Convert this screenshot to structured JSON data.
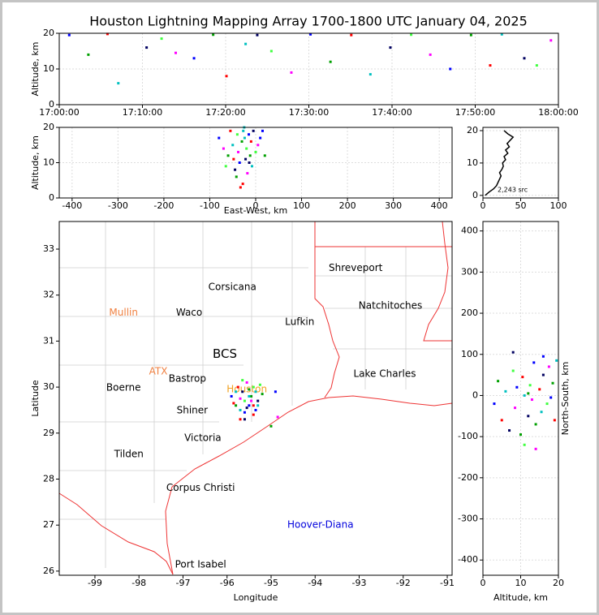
{
  "title": "Houston Lightning Mapping Array 1700-1800 UTC January 04, 2025",
  "chart_data": [
    {
      "type": "scatter",
      "ylabel": "Altitude, km",
      "xlim": [
        0,
        60
      ],
      "ylim": [
        0,
        20
      ],
      "xticks": [
        {
          "value": 0,
          "label": "17:00:00"
        },
        {
          "value": 10,
          "label": "17:10:00"
        },
        {
          "value": 20,
          "label": "17:20:00"
        },
        {
          "value": 30,
          "label": "17:30:00"
        },
        {
          "value": 40,
          "label": "17:40:00"
        },
        {
          "value": 50,
          "label": "17:50:00"
        },
        {
          "value": 60,
          "label": "18:00:00"
        }
      ],
      "yticks": [
        0,
        10,
        20
      ],
      "grid": true,
      "palette": [
        "#0000ff",
        "#00a000",
        "#ff0000",
        "#00c0c0",
        "#000060",
        "#40ff40",
        "#ff00ff"
      ],
      "x": [
        1.2,
        3.5,
        5.8,
        7.1,
        10.5,
        12.3,
        14.0,
        16.2,
        18.5,
        20.1,
        22.4,
        23.8,
        25.5,
        27.9,
        30.2,
        32.6,
        35.1,
        37.4,
        39.8,
        42.3,
        44.6,
        47.0,
        49.5,
        51.8,
        53.2,
        55.9,
        57.4,
        59.1
      ],
      "y": [
        19.5,
        14,
        19.8,
        6,
        16,
        18.5,
        14.5,
        13,
        19.6,
        8,
        17,
        19.5,
        15,
        9,
        19.7,
        12,
        19.5,
        8.5,
        16,
        19.6,
        14,
        10,
        19.5,
        11,
        19.7,
        13,
        11,
        18
      ]
    },
    {
      "type": "scatter",
      "xlabel": "East-West, km",
      "ylabel": "Altitude, km",
      "xlim": [
        -428,
        428
      ],
      "ylim": [
        0,
        20
      ],
      "xticks": [
        -400,
        -300,
        -200,
        -100,
        0,
        100,
        200,
        300,
        400
      ],
      "yticks": [
        0,
        10,
        20
      ],
      "grid": true,
      "palette": [
        "#0000ff",
        "#00a000",
        "#ff0000",
        "#00c0c0",
        "#000060",
        "#40ff40",
        "#ff00ff"
      ],
      "x": [
        -80,
        -60,
        -55,
        -50,
        -45,
        -40,
        -38,
        -35,
        -30,
        -28,
        -25,
        -22,
        -20,
        -18,
        -15,
        -12,
        -10,
        -8,
        -5,
        0,
        5,
        10,
        -42,
        -33,
        -27,
        -14,
        -65,
        -70,
        15,
        20,
        -48,
        -24
      ],
      "y": [
        17,
        12,
        19,
        15,
        8,
        18,
        13,
        10,
        16,
        4,
        20,
        11,
        14,
        7,
        18,
        12,
        16,
        9,
        19,
        13,
        15,
        17,
        6,
        3,
        19,
        10,
        9,
        14,
        19,
        12,
        11,
        17
      ]
    },
    {
      "type": "line",
      "note": "2,243 src",
      "color": "#000000",
      "xlim": [
        0,
        100
      ],
      "ylim": [
        -0.8,
        21
      ],
      "xticks": [
        0,
        50,
        100
      ],
      "yticks": [
        0,
        10,
        20
      ],
      "grid": true,
      "x": [
        3,
        8,
        14,
        18,
        20,
        22,
        24,
        22,
        25,
        27,
        26,
        30,
        28,
        33,
        30,
        35,
        32,
        36,
        40,
        33,
        28
      ],
      "y": [
        0,
        1,
        2,
        3,
        4,
        5,
        6,
        7,
        8,
        9,
        10,
        11,
        12,
        13,
        14,
        15,
        16,
        17,
        18,
        19,
        20
      ]
    },
    {
      "type": "map",
      "xlabel": "Longitude",
      "ylabel": "Latitude",
      "xlim": [
        -99.81,
        -90.89
      ],
      "ylim": [
        25.91,
        33.6
      ],
      "xticks": [
        -99,
        -98,
        -97,
        -96,
        -95,
        -94,
        -93,
        -92,
        -91
      ],
      "yticks": [
        26,
        27,
        28,
        29,
        30,
        31,
        32,
        33
      ],
      "grid": false,
      "palette": [
        "#0000ff",
        "#00a000",
        "#ff0000",
        "#00c0c0",
        "#000060",
        "#40ff40",
        "#ff00ff"
      ],
      "annotations": [
        {
          "text": "Shreveport",
          "lon": -93.08,
          "lat": 32.59,
          "color": "#000000"
        },
        {
          "text": "Corsicana",
          "lon": -95.88,
          "lat": 32.17,
          "color": "#000000"
        },
        {
          "text": "Mullin",
          "lon": -98.35,
          "lat": 31.62,
          "color": "#f08040"
        },
        {
          "text": "Waco",
          "lon": -96.86,
          "lat": 31.62,
          "color": "#000000"
        },
        {
          "text": "Natchitoches",
          "lon": -92.29,
          "lat": 31.77,
          "color": "#000000"
        },
        {
          "text": "Lufkin",
          "lon": -94.35,
          "lat": 31.41,
          "color": "#000000"
        },
        {
          "text": "BCS",
          "lon": -96.05,
          "lat": 30.72,
          "color": "#000000"
        },
        {
          "text": "ATX",
          "lon": -97.56,
          "lat": 30.34,
          "color": "#f08040"
        },
        {
          "text": "Bastrop",
          "lon": -96.9,
          "lat": 30.18,
          "color": "#000000"
        },
        {
          "text": "Lake Charles",
          "lon": -92.42,
          "lat": 30.28,
          "color": "#000000"
        },
        {
          "text": "Boerne",
          "lon": -98.35,
          "lat": 29.98,
          "color": "#000000"
        },
        {
          "text": "Houston",
          "lon": -95.55,
          "lat": 29.95,
          "color": "#f0a020"
        },
        {
          "text": "Shiner",
          "lon": -96.79,
          "lat": 29.49,
          "color": "#000000"
        },
        {
          "text": "Victoria",
          "lon": -96.55,
          "lat": 28.89,
          "color": "#000000"
        },
        {
          "text": "Tilden",
          "lon": -98.23,
          "lat": 28.54,
          "color": "#000000"
        },
        {
          "text": "Corpus Christi",
          "lon": -96.6,
          "lat": 27.81,
          "color": "#000000"
        },
        {
          "text": "Hoover-Diana",
          "lon": -93.88,
          "lat": 27.0,
          "color": "#0000dd"
        },
        {
          "text": "Port Isabel",
          "lon": -96.6,
          "lat": 26.14,
          "color": "#000000"
        }
      ],
      "x": [
        -95.9,
        -95.8,
        -95.75,
        -95.7,
        -95.65,
        -95.6,
        -95.55,
        -95.5,
        -95.45,
        -95.4,
        -95.35,
        -95.3,
        -95.25,
        -95.7,
        -95.6,
        -95.5,
        -95.4,
        -95.8,
        -95.55,
        -95.65,
        -95.45,
        -95.35,
        -95.2,
        -95.85,
        -95.5,
        -95.6,
        -95.4,
        -94.85,
        -94.9,
        -95.0,
        -95.7,
        -95.3
      ],
      "y": [
        29.8,
        29.6,
        30.0,
        29.5,
        29.9,
        29.7,
        30.1,
        29.6,
        29.8,
        29.4,
        29.9,
        29.7,
        30.05,
        29.75,
        29.45,
        29.95,
        29.6,
        29.9,
        29.55,
        30.15,
        29.7,
        29.5,
        29.85,
        29.65,
        29.8,
        29.3,
        30.0,
        29.35,
        29.9,
        29.15,
        29.3,
        29.6
      ]
    },
    {
      "type": "scatter",
      "xlabel": "Altitude, km",
      "ylabel": "North-South, km",
      "xlim": [
        0,
        20
      ],
      "ylim": [
        -437,
        423
      ],
      "xticks": [
        0,
        10,
        20
      ],
      "yticks": [
        -400,
        -300,
        -200,
        -100,
        0,
        100,
        200,
        300,
        400
      ],
      "grid": true,
      "palette": [
        "#0000ff",
        "#00a000",
        "#ff0000",
        "#00c0c0",
        "#000060",
        "#40ff40",
        "#ff00ff"
      ],
      "x": [
        3,
        4,
        5,
        6,
        7,
        8,
        8.5,
        9,
        10,
        10.5,
        11,
        12,
        12.5,
        13,
        13.5,
        14,
        15,
        15.5,
        16,
        17,
        17.5,
        18,
        18.5,
        19,
        19.5,
        8,
        11,
        14,
        16,
        12
      ],
      "y": [
        -20,
        35,
        -60,
        10,
        -85,
        60,
        -30,
        20,
        -95,
        45,
        0,
        -50,
        25,
        -10,
        80,
        -70,
        15,
        -40,
        50,
        -20,
        70,
        -5,
        30,
        -60,
        85,
        105,
        -120,
        -130,
        95,
        5
      ]
    }
  ]
}
